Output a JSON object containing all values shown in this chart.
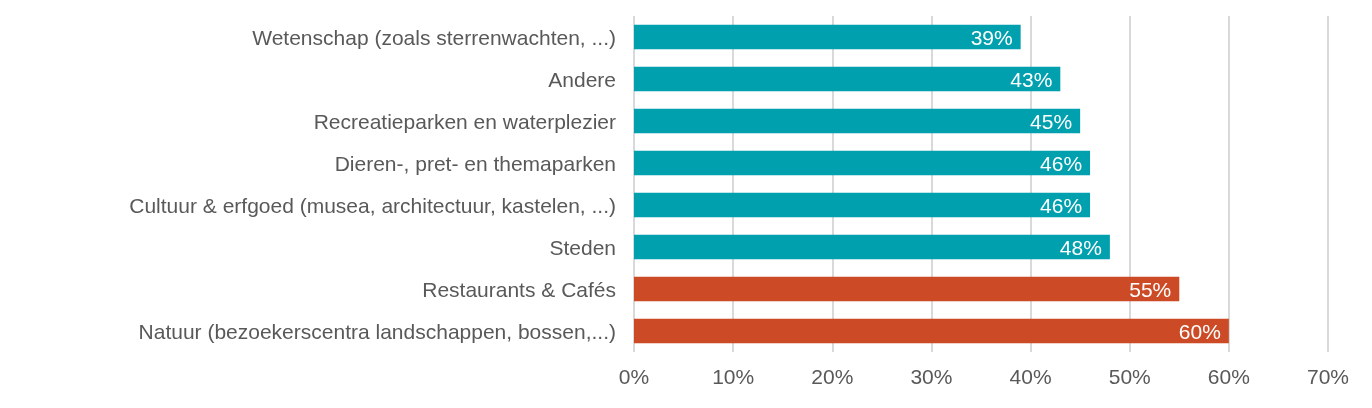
{
  "chart_data": {
    "type": "bar",
    "orientation": "horizontal",
    "categories": [
      "Wetenschap (zoals sterrenwachten, ...)",
      "Andere",
      "Recreatieparken en waterplezier",
      "Dieren-, pret- en themaparken",
      "Cultuur & erfgoed (musea, architectuur, kastelen, ...)",
      "Steden",
      "Restaurants & Cafés",
      "Natuur (bezoekerscentra landschappen, bossen,...)"
    ],
    "values": [
      39,
      43,
      45,
      46,
      46,
      48,
      55,
      60
    ],
    "colors": [
      "#00a0af",
      "#00a0af",
      "#00a0af",
      "#00a0af",
      "#00a0af",
      "#00a0af",
      "#cc4b26",
      "#cc4b26"
    ],
    "value_labels": [
      "39%",
      "43%",
      "45%",
      "46%",
      "46%",
      "48%",
      "55%",
      "60%"
    ],
    "xlim": [
      0,
      70
    ],
    "xticks": [
      {
        "value": 0,
        "label": "0%"
      },
      {
        "value": 10,
        "label": "10%"
      },
      {
        "value": 20,
        "label": "20%"
      },
      {
        "value": 30,
        "label": "30%"
      },
      {
        "value": 40,
        "label": "40%"
      },
      {
        "value": 50,
        "label": "50%"
      },
      {
        "value": 60,
        "label": "60%"
      },
      {
        "value": 70,
        "label": "70%"
      }
    ],
    "grid": "x"
  }
}
